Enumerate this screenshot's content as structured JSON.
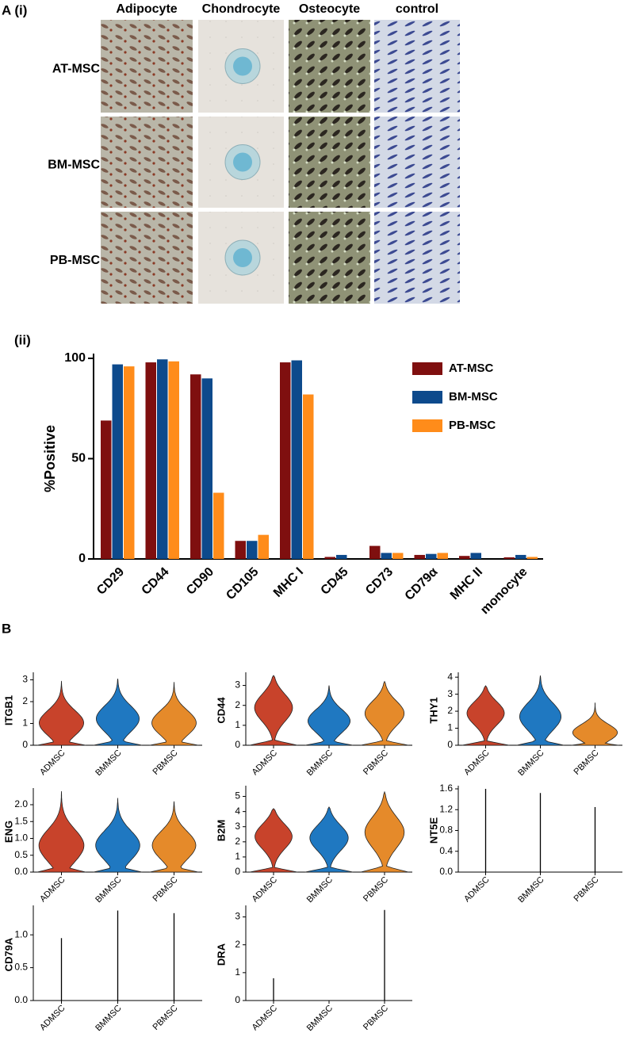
{
  "figure": {
    "panel_a_label": "A (i)",
    "panel_a_columns": [
      "Adipocyte",
      "Chondrocyte",
      "Osteocyte",
      "control"
    ],
    "panel_a_rows": [
      "AT-MSC",
      "BM-MSC",
      "PB-MSC"
    ],
    "panel_b_label": "B"
  },
  "chart_data": [
    {
      "type": "bar",
      "label": "(ii)",
      "ylabel": "%Positive",
      "categories": [
        "CD29",
        "CD44",
        "CD90",
        "CD105",
        "MHC I",
        "CD45",
        "CD73",
        "CD79α",
        "MHC II",
        "monocyte"
      ],
      "series": [
        {
          "name": "AT-MSC",
          "color": "#7f0f0f",
          "values": [
            69,
            98,
            92,
            9,
            98,
            1,
            6.5,
            2,
            1.5,
            0.8
          ]
        },
        {
          "name": "BM-MSC",
          "color": "#0d4a8c",
          "values": [
            97,
            99.5,
            90,
            9,
            99,
            2,
            3,
            2.5,
            3,
            2
          ]
        },
        {
          "name": "PB-MSC",
          "color": "#ff8c1a",
          "values": [
            96,
            98.5,
            33,
            12,
            82,
            0,
            3,
            3,
            0,
            1
          ]
        }
      ],
      "ylim": [
        0,
        100
      ],
      "yticks": [
        0,
        50,
        100
      ],
      "legend": "upper right"
    },
    {
      "type": "violin",
      "ylabel": "ITGB1",
      "categories": [
        "ADMSC",
        "BMMSC",
        "PBMSC"
      ],
      "colors": [
        "#c8432b",
        "#1f78c1",
        "#e58a2a"
      ],
      "values": [
        2.95,
        3.05,
        2.9
      ],
      "modes": [
        1.1,
        1.3,
        1.1
      ],
      "ylim": [
        0,
        3.2
      ],
      "yticks": [
        0,
        1,
        2,
        3
      ]
    },
    {
      "type": "violin",
      "ylabel": "CD44",
      "categories": [
        "ADMSC",
        "BMMSC",
        "PBMSC"
      ],
      "colors": [
        "#c8432b",
        "#1f78c1",
        "#e58a2a"
      ],
      "values": [
        3.5,
        3.0,
        3.2
      ],
      "modes": [
        2.0,
        1.3,
        1.7
      ],
      "ylim": [
        0,
        3.5
      ],
      "yticks": [
        0,
        1,
        2,
        3
      ]
    },
    {
      "type": "violin",
      "ylabel": "THY1",
      "categories": [
        "ADMSC",
        "BMMSC",
        "PBMSC"
      ],
      "colors": [
        "#c8432b",
        "#1f78c1",
        "#e58a2a"
      ],
      "values": [
        3.5,
        4.1,
        2.5
      ],
      "modes": [
        2.0,
        1.8,
        0.8
      ],
      "ylim": [
        0,
        4.1
      ],
      "yticks": [
        0,
        1,
        2,
        3,
        4
      ]
    },
    {
      "type": "violin",
      "ylabel": "ENG",
      "categories": [
        "ADMSC",
        "BMMSC",
        "PBMSC"
      ],
      "colors": [
        "#c8432b",
        "#1f78c1",
        "#e58a2a"
      ],
      "values": [
        2.4,
        2.2,
        2.1
      ],
      "modes": [
        0.85,
        0.85,
        0.85
      ],
      "ylim": [
        0,
        2.4
      ],
      "yticks": [
        {
          "value": 0,
          "label": "0.0"
        },
        {
          "value": 0.5,
          "label": "0.5"
        },
        {
          "value": 1,
          "label": "1.0"
        },
        {
          "value": 1.5,
          "label": "1.5"
        },
        {
          "value": 2,
          "label": "2.0"
        }
      ]
    },
    {
      "type": "violin",
      "ylabel": "B2M",
      "categories": [
        "ADMSC",
        "BMMSC",
        "PBMSC"
      ],
      "colors": [
        "#c8432b",
        "#1f78c1",
        "#e58a2a"
      ],
      "values": [
        4.2,
        4.3,
        5.3
      ],
      "modes": [
        2.5,
        2.4,
        2.8
      ],
      "ylim": [
        0,
        5.5
      ],
      "yticks": [
        0,
        1,
        2,
        3,
        4,
        5
      ]
    },
    {
      "type": "spike",
      "ylabel": "NT5E",
      "categories": [
        "ADMSC",
        "BMMSC",
        "PBMSC"
      ],
      "color": "#000000",
      "values": [
        1.6,
        1.52,
        1.25
      ],
      "ylim": [
        0,
        1.6
      ],
      "yticks": [
        {
          "value": 0,
          "label": "0.0"
        },
        0.4,
        0.8,
        1.2,
        1.6
      ]
    },
    {
      "type": "spike",
      "ylabel": "CD79A",
      "categories": [
        "ADMSC",
        "BMMSC",
        "PBMSC"
      ],
      "color": "#000000",
      "values": [
        0.95,
        1.37,
        1.33
      ],
      "ylim": [
        0,
        1.4
      ],
      "yticks": [
        {
          "value": 0,
          "label": "0.0"
        },
        0.5,
        {
          "value": 1,
          "label": "1.0"
        }
      ]
    },
    {
      "type": "spike",
      "ylabel": "DRA",
      "categories": [
        "ADMSC",
        "BMMSC",
        "PBMSC"
      ],
      "color": "#000000",
      "values": [
        0.8,
        0,
        3.25
      ],
      "ylim": [
        0,
        3.3
      ],
      "yticks": [
        0,
        1,
        2,
        3
      ]
    }
  ]
}
